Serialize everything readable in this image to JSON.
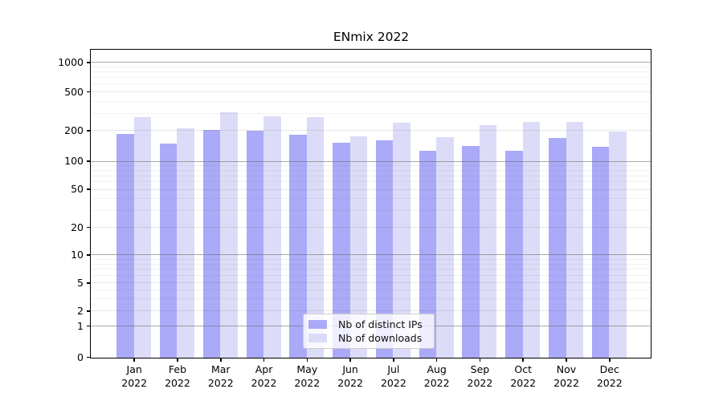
{
  "chart_data": {
    "type": "bar",
    "title": "ENmix 2022",
    "categories": [
      "Jan 2022",
      "Feb 2022",
      "Mar 2022",
      "Apr 2022",
      "May 2022",
      "Jun 2022",
      "Jul 2022",
      "Aug 2022",
      "Sep 2022",
      "Oct 2022",
      "Nov 2022",
      "Dec 2022"
    ],
    "series": [
      {
        "name": "Nb of distinct IPs",
        "color": "#aaaaf8",
        "values": [
          185,
          150,
          205,
          200,
          183,
          152,
          160,
          126,
          141,
          126,
          169,
          140
        ]
      },
      {
        "name": "Nb of downloads",
        "color": "#dcdcf8",
        "values": [
          275,
          209,
          307,
          278,
          274,
          177,
          242,
          172,
          227,
          244,
          244,
          196
        ]
      }
    ],
    "xlabel": "",
    "ylabel": "",
    "y_axis": {
      "scale": "log-like",
      "ticks": [
        0,
        1,
        2,
        5,
        10,
        20,
        50,
        100,
        200,
        500,
        1000
      ]
    },
    "grid": "on",
    "legend_position": "bottom-center",
    "colors": {
      "bar_dark": "#aaaaf8",
      "bar_light": "#dcdcf8",
      "axis": "#000000",
      "grid_dark": "#a0a0a0",
      "grid_light": "#e6e6e6"
    }
  }
}
